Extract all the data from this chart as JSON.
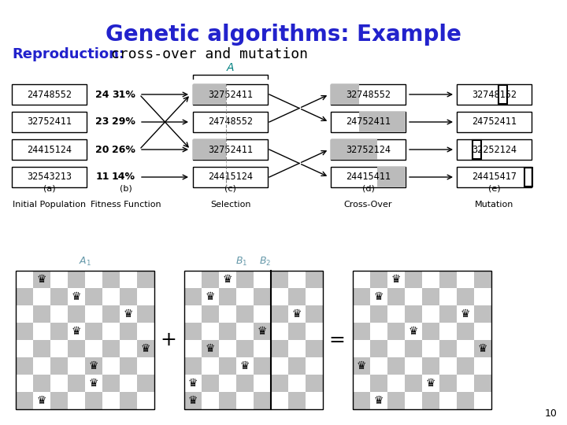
{
  "title": "Genetic algorithms: Example",
  "subtitle_bold": "Reproduction:",
  "subtitle_rest": " cross-over and mutation",
  "title_color": "#2222cc",
  "subtitle_bold_color": "#2222cc",
  "bg_color": "#ffffff",
  "initial_population": [
    "24748552",
    "32752411",
    "24415124",
    "32543213"
  ],
  "fitness_nums": [
    "24",
    "23",
    "20",
    "11"
  ],
  "fitness_pcts": [
    "31%",
    "29%",
    "26%",
    "14%"
  ],
  "selection": [
    "32752411",
    "24748552",
    "32752411",
    "24415124"
  ],
  "sel_gray": [
    0.444,
    0.0,
    0.444,
    0.0
  ],
  "crossover": [
    "32748552",
    "24752411",
    "32752124",
    "24415411"
  ],
  "cros_gray": [
    0.375,
    0.375,
    0.625,
    0.625
  ],
  "mutation": [
    "32748152",
    "24752411",
    "32252124",
    "24415417"
  ],
  "mut_highlight": [
    5,
    -1,
    2,
    8
  ],
  "col_label_a": "(a)",
  "col_label_b": "(b)",
  "col_label_c": "(c)",
  "col_label_d": "(d)",
  "col_label_e": "(e)",
  "col_sub_a": "Initial Population",
  "col_sub_b": "Fitness Function",
  "col_sub_c": "Selection",
  "col_sub_d": "Cross-Over",
  "col_sub_e": "Mutation",
  "note": "10",
  "chess_A": "24748552",
  "chess_B": "32752411",
  "chess_R": "32748152"
}
